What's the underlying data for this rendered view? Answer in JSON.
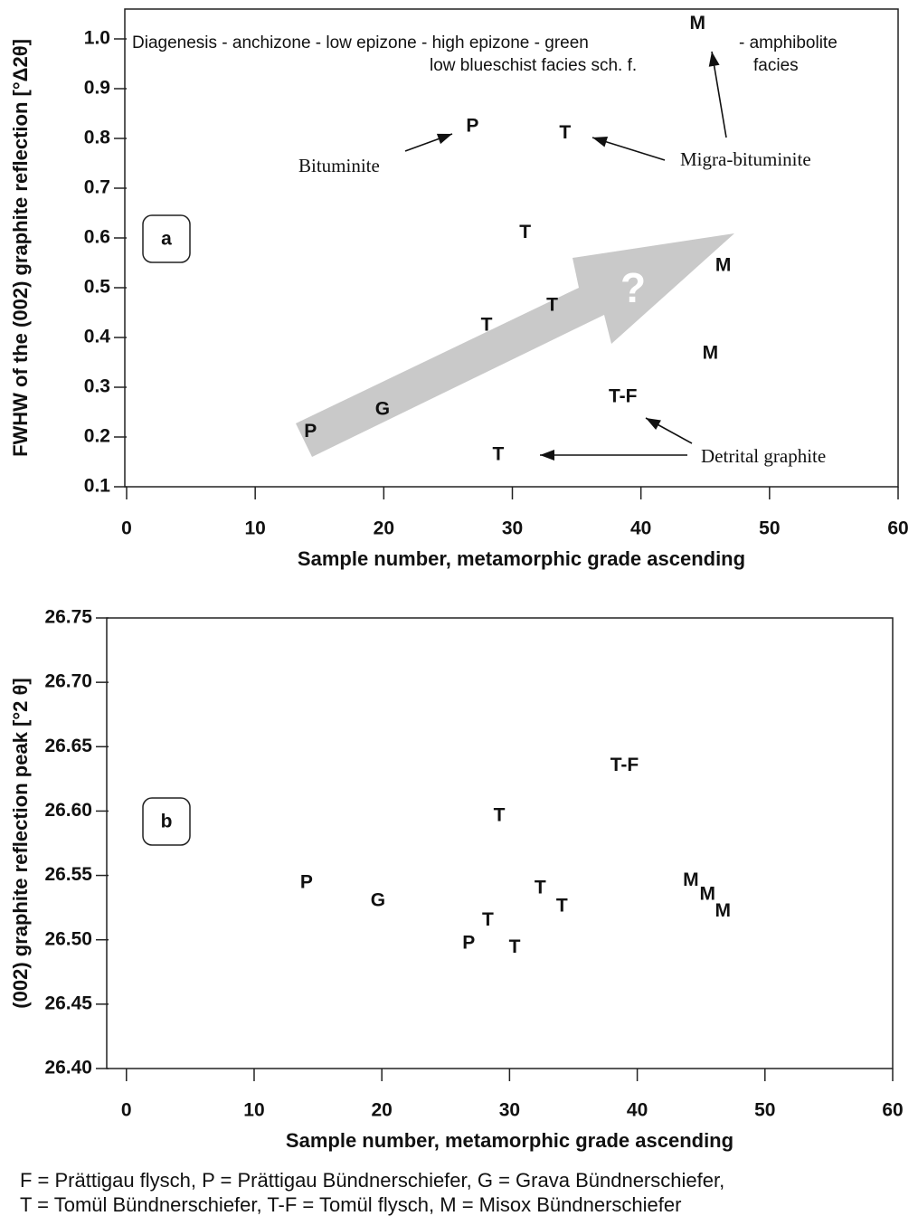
{
  "chart_data": [
    {
      "type": "scatter",
      "x": [
        14.3,
        19.9,
        28,
        33.1,
        31,
        26.9,
        34.1,
        44.4,
        46.4,
        45.4,
        38.6,
        28.9
      ],
      "values": [
        0.21,
        0.255,
        0.424,
        0.464,
        0.61,
        0.824,
        0.81,
        1.03,
        0.544,
        0.367,
        0.28,
        0.164
      ],
      "point_labels": [
        "P",
        "G",
        "T",
        "T",
        "T",
        "P",
        "T",
        "M",
        "M",
        "M",
        "T-F",
        "T"
      ],
      "xlim": [
        0,
        60
      ],
      "xticks": [
        0,
        10,
        20,
        30,
        40,
        50,
        60
      ],
      "ylim": [
        0.1,
        1.06
      ],
      "yticks": [
        0.1,
        0.2,
        0.3,
        0.4,
        0.5,
        0.6,
        0.7,
        0.8,
        0.9,
        {
          "value": 1,
          "label": "1.0"
        }
      ],
      "x_label": "Sample number, metamorphic grade ascending",
      "y_label": "FWHW of the (002) graphite reflection [°Δ2θ]",
      "panel_label": "a",
      "annotations": [
        "Diagenesis - anchizone - low epizone - high epizone - green",
        "- amphibolite",
        "low blueschist facies  sch. f.",
        "facies",
        "Bituminite",
        "Migra-bituminite",
        "Detrital graphite",
        "?"
      ]
    },
    {
      "type": "scatter",
      "x": [
        14.1,
        19.7,
        29.2,
        39,
        32.4,
        34.1,
        28.3,
        26.8,
        30.4,
        44.2,
        45.5,
        46.7
      ],
      "values": [
        26.544,
        26.53,
        26.596,
        26.635,
        26.54,
        26.526,
        26.515,
        26.497,
        26.494,
        26.546,
        26.535,
        26.522
      ],
      "point_labels": [
        "P",
        "G",
        "T",
        "T-F",
        "T",
        "T",
        "T",
        "P",
        "T",
        "M",
        "M",
        "M"
      ],
      "xlim": [
        -1.4,
        60
      ],
      "xticks": [
        0,
        10,
        20,
        30,
        40,
        50,
        60
      ],
      "ylim": [
        26.4,
        26.75
      ],
      "yticks": [
        {
          "value": 26.4,
          "label": "26.40"
        },
        26.45,
        {
          "value": 26.5,
          "label": "26.50"
        },
        26.55,
        {
          "value": 26.6,
          "label": "26.60"
        },
        26.65,
        {
          "value": 26.7,
          "label": "26.70"
        },
        26.75
      ],
      "x_label": "Sample number, metamorphic grade ascending",
      "y_label": "(002) graphite reflection peak [°2 θ]",
      "panel_label": "b"
    }
  ],
  "caption": [
    "F = Prättigau flysch, P = Prättigau Bündnerschiefer, G = Grava Bündnerschiefer,",
    "T = Tomül Bündnerschiefer, T-F = Tomül flysch, M = Misox Bündnerschiefer"
  ]
}
